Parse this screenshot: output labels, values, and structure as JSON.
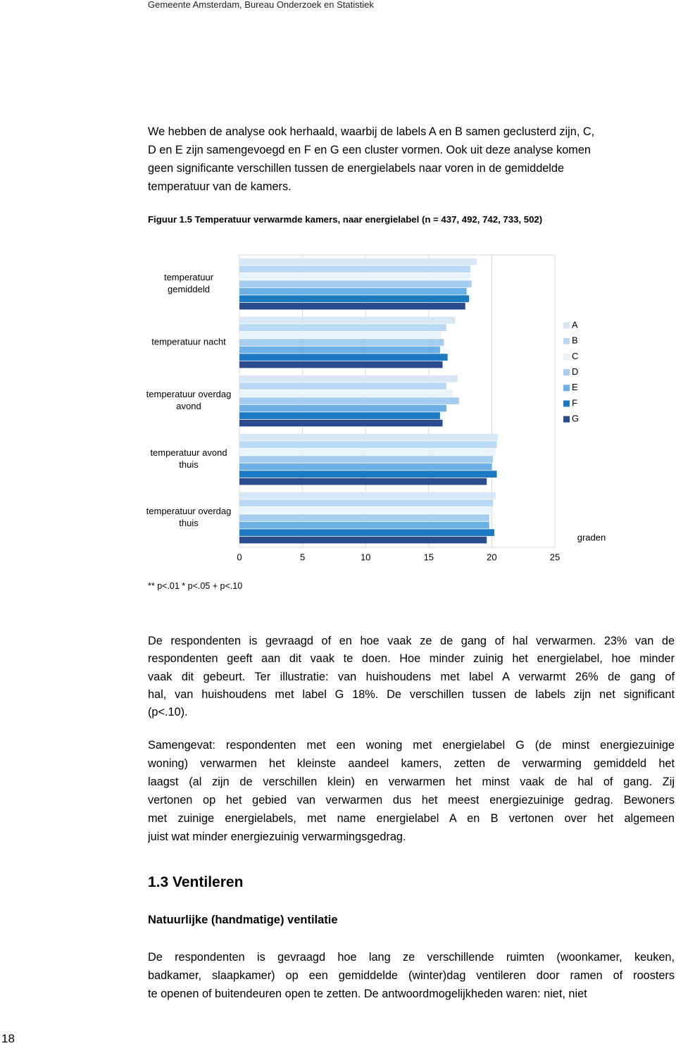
{
  "header": "Gemeente Amsterdam, Bureau Onderzoek en Statistiek",
  "intro": [
    "We hebben de analyse ook herhaald, waarbij de labels A en B samen geclusterd zijn, C,",
    "D en E zijn samengevoegd en F en G een cluster vormen. Ook uit deze analyse komen",
    "geen significante verschillen tussen de energielabels naar voren in de gemiddelde",
    "temperatuur van de kamers."
  ],
  "figure_caption": "Figuur 1.5 Temperatuur verwarmde kamers, naar energielabel (n = 437, 492, 742, 733, 502)",
  "chart_data": {
    "type": "bar",
    "orientation": "horizontal",
    "categories": [
      "temperatuur gemiddeld",
      "temperatuur nacht",
      "temperatuur overdag avond",
      "temperatuur avond thuis",
      "temperatuur overdag thuis"
    ],
    "series": [
      {
        "name": "A",
        "color": "#d7e7f7",
        "values": [
          18.8,
          17.1,
          17.3,
          20.5,
          20.3
        ]
      },
      {
        "name": "B",
        "color": "#b9d9f4",
        "values": [
          18.3,
          16.4,
          16.4,
          20.4,
          20.1
        ]
      },
      {
        "name": "C",
        "color": "#e9f3fc",
        "values": [
          18.3,
          16.0,
          16.9,
          20.3,
          20.1
        ]
      },
      {
        "name": "D",
        "color": "#a6cdef",
        "values": [
          18.4,
          16.2,
          17.4,
          20.1,
          19.8
        ]
      },
      {
        "name": "E",
        "color": "#6cb0e5",
        "values": [
          18.0,
          15.9,
          16.4,
          20.0,
          19.8
        ]
      },
      {
        "name": "F",
        "color": "#1c79c3",
        "values": [
          18.2,
          16.5,
          15.9,
          20.4,
          20.2
        ]
      },
      {
        "name": "G",
        "color": "#2a4b8d",
        "values": [
          17.9,
          16.1,
          16.1,
          19.6,
          19.6
        ]
      }
    ],
    "xlim": [
      0,
      25
    ],
    "xticks": [
      0,
      5,
      10,
      15,
      20,
      25
    ],
    "x_label": "graden",
    "legend": "right",
    "grid": true
  },
  "footnote": "** p<.01 * p<.05 + p<.10",
  "body": [
    [
      "De respondenten is gevraagd of en hoe vaak ze de gang of hal verwarmen. 23% van de",
      "respondenten geeft aan dit vaak te doen. Hoe minder zuinig het energielabel, hoe minder",
      "vaak dit gebeurt. Ter illustratie: van huishoudens met label A verwarmt 26% de gang of",
      "hal, van huishoudens met label G 18%. De verschillen tussen de labels zijn net significant",
      "(p<.10)."
    ],
    [
      "Samengevat: respondenten met een woning met energielabel G (de minst energiezuinige",
      "woning) verwarmen het kleinste aandeel kamers, zetten de verwarming gemiddeld het",
      "laagst (al zijn de verschillen klein) en verwarmen het minst vaak de hal of gang. Zij",
      "vertonen op het gebied van verwarmen dus het meest energiezuinige gedrag. Bewoners",
      "met zuinige energielabels, met name energielabel A en B vertonen over het algemeen",
      "juist wat minder energiezuinig verwarmingsgedrag."
    ]
  ],
  "section_heading": "1.3 Ventileren",
  "subheading": "Natuurlijke (handmatige) ventilatie",
  "section_text": [
    "De respondenten is gevraagd hoe lang ze verschillende ruimten (woonkamer, keuken,",
    "badkamer, slaapkamer) op een gemiddelde (winter)dag ventileren door ramen of roosters",
    "te openen of buitendeuren open te zetten. De antwoordmogelijkheden waren: niet, niet"
  ],
  "page_number": "18"
}
